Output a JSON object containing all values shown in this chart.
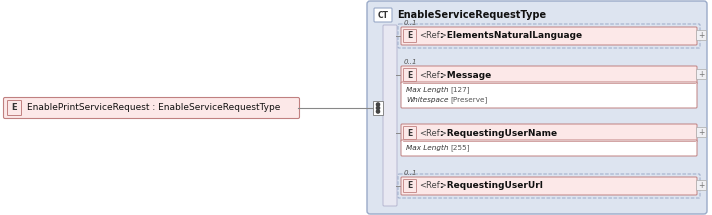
{
  "bg_color": "#ffffff",
  "main_box_bg": "#dde4f0",
  "main_box_border": "#9aaac8",
  "ct_label": "CT",
  "ct_title": "EnableServiceRequestType",
  "left_box_label": "E",
  "left_box_text": "EnablePrintServiceRequest : EnableServiceRequestType",
  "left_box_bg": "#fce8e8",
  "left_box_border": "#c08080",
  "element_label": "E",
  "element_bg": "#fce8e8",
  "element_border": "#c08080",
  "vertical_bar_color": "#e8e8f2",
  "vertical_bar_border": "#b0b0cc",
  "items": [
    {
      "name": ": ElementsNaturalLanguage",
      "cardinality": "0..1",
      "dashed": true,
      "details": [],
      "has_plus": true
    },
    {
      "name": ": Message",
      "cardinality": "0..1",
      "dashed": false,
      "details": [
        "Max Length",
        "[127]",
        "Whitespace",
        "[Preserve]"
      ],
      "has_plus": true
    },
    {
      "name": ": RequestingUserName",
      "cardinality": "",
      "dashed": false,
      "details": [
        "Max Length",
        "[255]"
      ],
      "has_plus": true
    },
    {
      "name": ": RequestingUserUrl",
      "cardinality": "0..1",
      "dashed": true,
      "details": [],
      "has_plus": true
    }
  ]
}
